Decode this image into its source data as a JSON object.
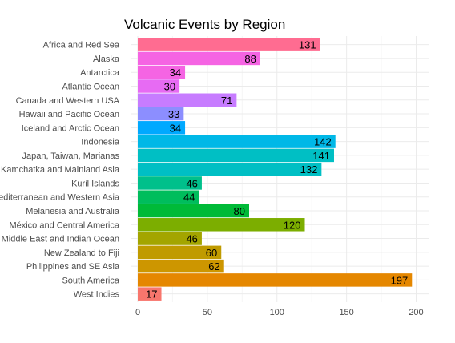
{
  "chart_data": {
    "type": "bar",
    "orientation": "horizontal",
    "title": "Volcanic Events by Region",
    "xlabel": "",
    "ylabel": "",
    "xlim": [
      0,
      205
    ],
    "x_ticks": [
      0,
      50,
      100,
      150,
      200
    ],
    "grid": true,
    "legend": "none",
    "categories": [
      "Africa and Red Sea",
      "Alaska",
      "Antarctica",
      "Atlantic Ocean",
      "Canada and Western USA",
      "Hawaii and Pacific Ocean",
      "Iceland and Arctic Ocean",
      "Indonesia",
      "Japan, Taiwan, Marianas",
      "Kamchatka and Mainland Asia",
      "Kuril Islands",
      "Mediterranean and Western Asia",
      "Melanesia and Australia",
      "México and Central America",
      "Middle East and Indian Ocean",
      "New Zealand to Fiji",
      "Philippines and SE Asia",
      "South America",
      "West Indies"
    ],
    "values": [
      131,
      88,
      34,
      30,
      71,
      33,
      34,
      142,
      141,
      132,
      46,
      44,
      80,
      120,
      46,
      60,
      62,
      197,
      17
    ],
    "colors": [
      "#FF6C91",
      "#F564E3",
      "#F564E3",
      "#E76BF3",
      "#C77CFF",
      "#8C8EFF",
      "#00A9FF",
      "#00B8E7",
      "#00BFC4",
      "#00BFC4",
      "#00C08B",
      "#00BD5C",
      "#00BA38",
      "#7CAE00",
      "#A3A500",
      "#C09B00",
      "#CD9600",
      "#E58700",
      "#F8766D"
    ]
  }
}
